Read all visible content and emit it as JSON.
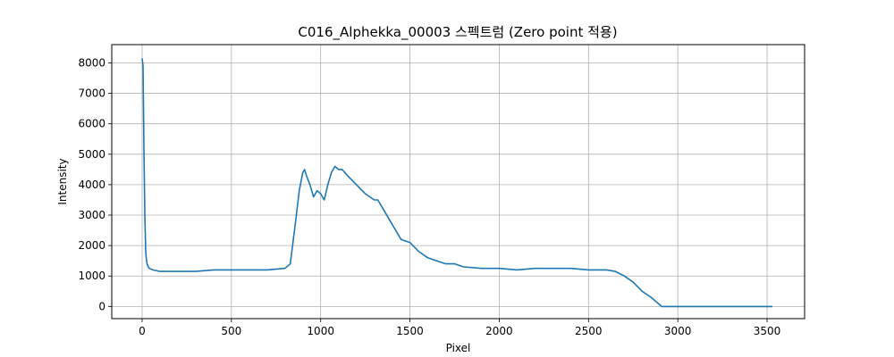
{
  "chart_data": {
    "type": "line",
    "title": "C016_Alphekka_00003 스펙트럼 (Zero point 적용)",
    "xlabel": "Pixel",
    "ylabel": "Intensity",
    "xlim": [
      -170,
      3710
    ],
    "ylim": [
      -400,
      8600
    ],
    "grid": true,
    "line_color": "#1f77b4",
    "x_ticks": [
      0,
      500,
      1000,
      1500,
      2000,
      2500,
      3000,
      3500
    ],
    "y_ticks": [
      0,
      1000,
      2000,
      3000,
      4000,
      5000,
      6000,
      7000,
      8000
    ],
    "series": [
      {
        "x": [
          0,
          5,
          10,
          15,
          20,
          25,
          30,
          40,
          60,
          100,
          200,
          300,
          400,
          500,
          600,
          700,
          800,
          830,
          860,
          880,
          900,
          910,
          920,
          940,
          960,
          980,
          1000,
          1020,
          1040,
          1060,
          1080,
          1100,
          1120,
          1150,
          1200,
          1250,
          1300,
          1320,
          1350,
          1400,
          1450,
          1500,
          1550,
          1600,
          1650,
          1700,
          1750,
          1800,
          1900,
          2000,
          2100,
          2200,
          2300,
          2400,
          2500,
          2600,
          2650,
          2700,
          2750,
          2800,
          2850,
          2900,
          2910,
          3000,
          3200,
          3400,
          3530
        ],
        "y": [
          8150,
          7900,
          5200,
          3000,
          1800,
          1500,
          1350,
          1250,
          1200,
          1150,
          1150,
          1150,
          1200,
          1200,
          1200,
          1200,
          1250,
          1400,
          2800,
          3800,
          4400,
          4500,
          4300,
          4000,
          3600,
          3800,
          3700,
          3500,
          4000,
          4400,
          4600,
          4500,
          4500,
          4300,
          4000,
          3700,
          3500,
          3500,
          3200,
          2700,
          2200,
          2100,
          1800,
          1600,
          1500,
          1400,
          1400,
          1300,
          1250,
          1250,
          1200,
          1250,
          1250,
          1250,
          1200,
          1200,
          1150,
          1000,
          800,
          500,
          300,
          50,
          0,
          0,
          0,
          0,
          0
        ]
      }
    ]
  }
}
